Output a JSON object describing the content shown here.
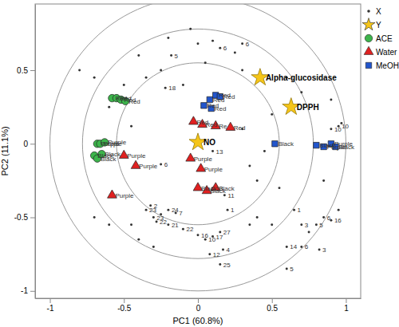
{
  "chart_data": {
    "type": "scatter",
    "x_label": "PC1 (60.8%)",
    "y_label": "PC2 (11.1%)",
    "xlim": [
      -1.1,
      1.1
    ],
    "ylim": [
      -1.05,
      0.95
    ],
    "xticks": [
      -1,
      -0.5,
      0,
      0.5,
      1
    ],
    "yticks": [
      -1,
      -0.5,
      0,
      0.5
    ],
    "legend": "top-right",
    "reference_circles": [
      0.55,
      0.78,
      1
    ],
    "series": [
      {
        "name": "X",
        "color": "#333333",
        "marker": "dot",
        "x": [
          -0.2,
          -0.18,
          -0.05,
          0.0,
          0.1,
          0.15,
          0.3,
          0.25,
          -0.25,
          -0.22,
          -0.5,
          -0.6,
          -0.35,
          0.95,
          0.97,
          0.9,
          -0.35,
          -0.32,
          -0.3,
          -0.28,
          -0.2,
          -0.15,
          -0.25,
          -0.2,
          -0.1,
          0.0,
          0.05,
          0.1,
          0.15,
          0.08,
          0.17,
          0.15,
          0.1,
          0.18,
          0.2,
          0.1,
          -0.25,
          -0.45,
          -0.6,
          -0.7,
          -0.4,
          -0.3,
          0.4,
          0.5,
          0.55,
          0.6,
          0.65,
          0.7,
          0.75,
          0.8,
          0.85,
          0.9,
          0.82,
          0.7,
          0.6,
          0.95,
          0.35,
          0.4,
          0.5,
          0.6,
          0.7,
          -0.45,
          -0.8,
          -0.7,
          0.3,
          0.45,
          0.35,
          -0.1,
          0.3,
          0.05,
          -0.4,
          0.9,
          0.85
        ],
        "values": [
          0.72,
          0.6,
          0.78,
          0.68,
          0.7,
          0.65,
          0.68,
          0.62,
          0.5,
          0.38,
          0.4,
          0.25,
          0.45,
          0.12,
          0.14,
          0.1,
          -0.45,
          -0.42,
          -0.5,
          -0.53,
          -0.45,
          -0.47,
          -0.48,
          -0.55,
          -0.58,
          -0.62,
          -0.65,
          -0.63,
          -0.6,
          -0.75,
          -0.72,
          -0.82,
          -0.3,
          -0.35,
          -0.45,
          -0.05,
          -0.14,
          -0.55,
          -0.55,
          -0.5,
          -0.65,
          -0.7,
          -0.5,
          -0.55,
          -0.3,
          -0.7,
          -0.45,
          -0.55,
          -0.6,
          -0.55,
          -0.5,
          -0.52,
          -0.72,
          -0.7,
          -0.85,
          -0.45,
          -0.55,
          -0.25,
          0.2,
          0.45,
          0.35,
          0.12,
          0.5,
          0.45,
          0.1,
          -0.05,
          -0.15,
          0.4,
          0.5,
          0.55,
          0.6,
          0.3,
          -0.25
        ],
        "labels": [
          null,
          "5",
          null,
          null,
          null,
          "6",
          "6",
          null,
          null,
          "18",
          null,
          null,
          null,
          "10",
          null,
          "10",
          "23",
          "2",
          "23",
          "22",
          "24",
          "7",
          null,
          "21",
          "22",
          "16",
          "10",
          "17",
          "27",
          "12",
          "4",
          "25",
          "13",
          "11",
          "1",
          "13",
          "6",
          null,
          null,
          null,
          null,
          null,
          null,
          null,
          null,
          "14",
          "1",
          "3",
          null,
          "5",
          "6",
          "16",
          "3",
          "6",
          "5",
          null,
          null,
          null,
          null,
          null,
          null,
          null,
          null,
          null,
          null,
          null,
          null,
          null,
          null,
          null,
          null,
          null,
          null
        ]
      },
      {
        "name": "Y",
        "color": "#f5c518",
        "marker": "star",
        "x": [
          0.42,
          0.63,
          0.0
        ],
        "values": [
          0.45,
          0.25,
          0.01
        ],
        "labels": [
          "Alpha-glucosidase",
          "DPPH",
          "NO"
        ]
      },
      {
        "name": "ACE",
        "color": "#3cb44b",
        "marker": "circle",
        "x": [
          -0.58,
          -0.55,
          -0.52,
          -0.49,
          -0.68,
          -0.66,
          -0.63,
          -0.7,
          -0.68,
          -0.65
        ],
        "values": [
          0.31,
          0.31,
          0.3,
          0.29,
          0.0,
          0.0,
          0.01,
          -0.08,
          -0.1,
          -0.07
        ],
        "labels": [
          "Red",
          "Red",
          "Red",
          "Red",
          "Purple",
          "Purple",
          "Purple",
          "Black",
          "Black",
          "Black"
        ]
      },
      {
        "name": "Water",
        "color": "#e02020",
        "marker": "triangle",
        "x": [
          -0.03,
          0.03,
          0.12,
          0.22,
          -0.05,
          0.02,
          -0.5,
          -0.58,
          -0.42,
          0.0,
          0.06,
          0.12
        ],
        "values": [
          0.15,
          0.13,
          0.12,
          0.11,
          -0.1,
          -0.17,
          -0.08,
          -0.35,
          -0.15,
          -0.3,
          -0.32,
          -0.3
        ],
        "labels": [
          "Red",
          "Red",
          "Re",
          "Red",
          "Purple",
          "Purple",
          "Purple",
          "Purple",
          "Purple",
          "Black",
          "Black",
          "Black"
        ]
      },
      {
        "name": "MeOH",
        "color": "#2255cc",
        "marker": "square",
        "x": [
          0.04,
          0.08,
          0.12,
          0.15,
          0.09,
          0.52,
          0.8,
          0.85,
          0.9,
          0.93
        ],
        "values": [
          0.26,
          0.3,
          0.33,
          0.32,
          0.24,
          0.0,
          -0.01,
          -0.02,
          0.0,
          -0.02
        ],
        "labels": [
          "Red",
          "Red",
          "Red",
          "Red",
          "Red",
          "Black",
          "Black",
          "Purple",
          "Purple",
          "Black"
        ]
      }
    ]
  }
}
